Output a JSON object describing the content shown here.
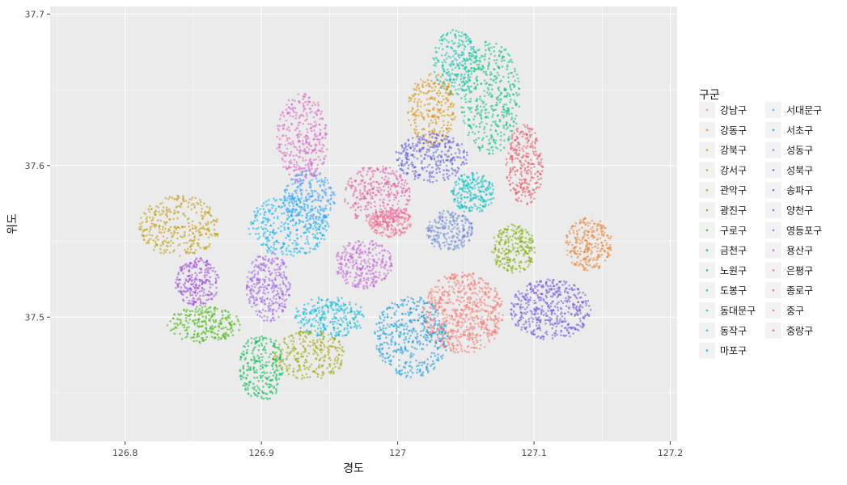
{
  "chart_data": {
    "type": "scatter",
    "title": "",
    "xlabel": "경도",
    "ylabel": "위도",
    "xlim": [
      126.745,
      127.205
    ],
    "ylim": [
      37.418,
      37.705
    ],
    "x_ticks": [
      126.8,
      126.9,
      127.0,
      127.1,
      127.2
    ],
    "x_tick_labels": [
      "126.8",
      "126.9",
      "127",
      "127.1",
      "127.2"
    ],
    "y_ticks": [
      37.5,
      37.6,
      37.7
    ],
    "y_tick_labels": [
      "37.5",
      "37.6",
      "37.7"
    ],
    "grid": true,
    "legend_title": "구군",
    "legend_position": "right",
    "point_alpha": 0.55,
    "series": [
      {
        "name": "강남구",
        "color": "#F8766D",
        "center": [
          127.048,
          37.503
        ],
        "spread": [
          0.022,
          0.02
        ],
        "n": 650
      },
      {
        "name": "강동구",
        "color": "#EA8331",
        "center": [
          127.14,
          37.548
        ],
        "spread": [
          0.013,
          0.013
        ],
        "n": 260
      },
      {
        "name": "강북구",
        "color": "#D89000",
        "center": [
          127.025,
          37.637
        ],
        "spread": [
          0.013,
          0.018
        ],
        "n": 260
      },
      {
        "name": "강서구",
        "color": "#C09B00",
        "center": [
          126.84,
          37.56
        ],
        "spread": [
          0.022,
          0.015
        ],
        "n": 330
      },
      {
        "name": "관악구",
        "color": "#A3A500",
        "center": [
          126.935,
          37.475
        ],
        "spread": [
          0.02,
          0.012
        ],
        "n": 280
      },
      {
        "name": "광진구",
        "color": "#7CAE00",
        "center": [
          127.085,
          37.545
        ],
        "spread": [
          0.012,
          0.012
        ],
        "n": 240
      },
      {
        "name": "구로구",
        "color": "#39B600",
        "center": [
          126.858,
          37.495
        ],
        "spread": [
          0.02,
          0.009
        ],
        "n": 230
      },
      {
        "name": "금천구",
        "color": "#00BB4E",
        "center": [
          126.9,
          37.467
        ],
        "spread": [
          0.012,
          0.017
        ],
        "n": 250
      },
      {
        "name": "노원구",
        "color": "#00BF7D",
        "center": [
          127.068,
          37.645
        ],
        "spread": [
          0.016,
          0.028
        ],
        "n": 420
      },
      {
        "name": "도봉구",
        "color": "#00C1A3",
        "center": [
          127.042,
          37.668
        ],
        "spread": [
          0.012,
          0.016
        ],
        "n": 230
      },
      {
        "name": "동대문구",
        "color": "#00BFC4",
        "center": [
          127.055,
          37.582
        ],
        "spread": [
          0.012,
          0.01
        ],
        "n": 220
      },
      {
        "name": "동작구",
        "color": "#00BAE0",
        "center": [
          126.95,
          37.5
        ],
        "spread": [
          0.02,
          0.01
        ],
        "n": 260
      },
      {
        "name": "마포구",
        "color": "#00B0F6",
        "center": [
          126.92,
          37.56
        ],
        "spread": [
          0.022,
          0.015
        ],
        "n": 330
      },
      {
        "name": "서대문구",
        "color": "#35A2FF",
        "center": [
          126.935,
          37.578
        ],
        "spread": [
          0.014,
          0.014
        ],
        "n": 260
      },
      {
        "name": "서초구",
        "color": "#0D9BE2",
        "center": [
          127.01,
          37.487
        ],
        "spread": [
          0.02,
          0.02
        ],
        "n": 420
      },
      {
        "name": "성동구",
        "color": "#6C8CD5",
        "center": [
          127.038,
          37.557
        ],
        "spread": [
          0.013,
          0.01
        ],
        "n": 240
      },
      {
        "name": "성북구",
        "color": "#5A5AE0",
        "center": [
          127.025,
          37.605
        ],
        "spread": [
          0.02,
          0.012
        ],
        "n": 300
      },
      {
        "name": "송파구",
        "color": "#6D51E0",
        "center": [
          127.112,
          37.505
        ],
        "spread": [
          0.022,
          0.015
        ],
        "n": 450
      },
      {
        "name": "양천구",
        "color": "#9A48DA",
        "center": [
          126.853,
          37.523
        ],
        "spread": [
          0.012,
          0.012
        ],
        "n": 240
      },
      {
        "name": "영등포구",
        "color": "#A05CE6",
        "center": [
          126.905,
          37.52
        ],
        "spread": [
          0.012,
          0.017
        ],
        "n": 300
      },
      {
        "name": "용산구",
        "color": "#C25ED8",
        "center": [
          126.975,
          37.535
        ],
        "spread": [
          0.016,
          0.012
        ],
        "n": 280
      },
      {
        "name": "은평구",
        "color": "#DC5FC4",
        "center": [
          126.93,
          37.618
        ],
        "spread": [
          0.014,
          0.022
        ],
        "n": 340
      },
      {
        "name": "종로구",
        "color": "#E45AA4",
        "center": [
          126.985,
          37.58
        ],
        "spread": [
          0.018,
          0.015
        ],
        "n": 340
      },
      {
        "name": "중구",
        "color": "#F06A88",
        "center": [
          126.995,
          37.562
        ],
        "spread": [
          0.012,
          0.007
        ],
        "n": 200
      },
      {
        "name": "중랑구",
        "color": "#E8505F",
        "center": [
          127.093,
          37.6
        ],
        "spread": [
          0.01,
          0.02
        ],
        "n": 260
      }
    ]
  }
}
